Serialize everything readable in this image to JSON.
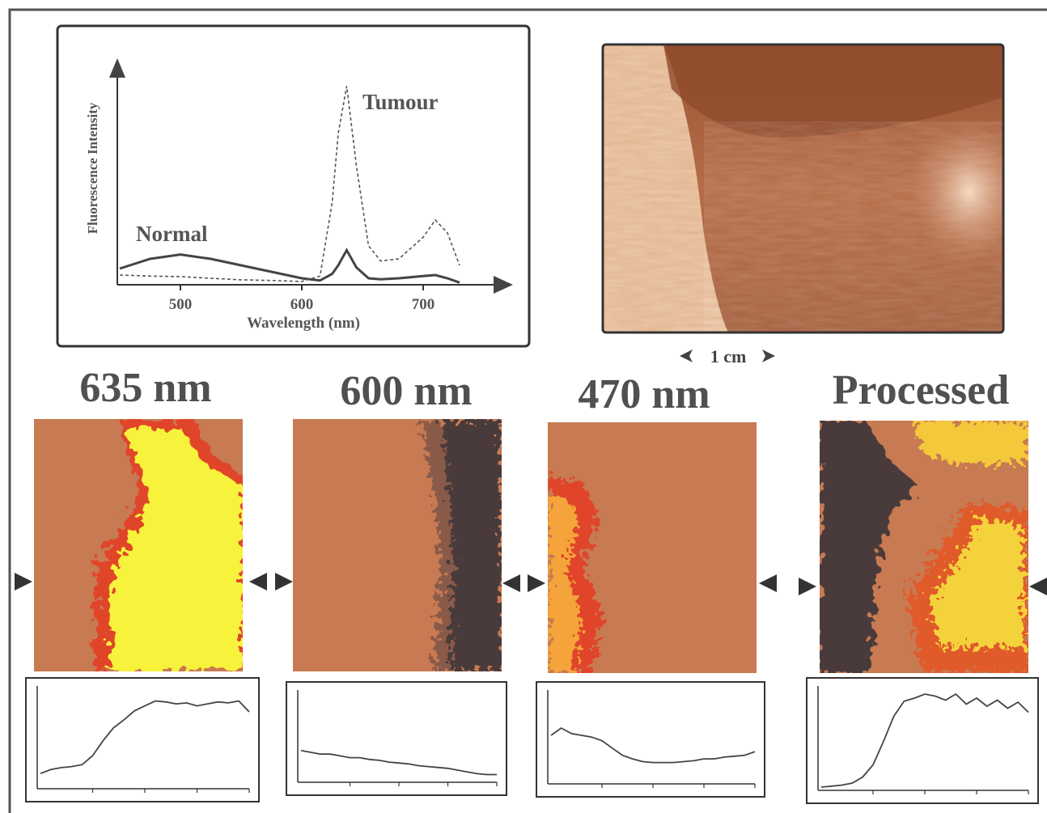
{
  "chart_data": [
    {
      "type": "line",
      "x_label": "Wavelength (nm)",
      "y_label": "Fluorescence Intensity",
      "x": [
        450,
        475,
        500,
        525,
        550,
        575,
        600,
        615,
        625,
        630,
        637,
        645,
        655,
        665,
        680,
        700,
        710,
        720,
        730
      ],
      "series": [
        {
          "name": "Normal",
          "color": "#444444",
          "line_style": "solid",
          "values": [
            7.5,
            12,
            14,
            12,
            9,
            6,
            3,
            2,
            5,
            9,
            16,
            8,
            3,
            2.5,
            3,
            4,
            4.5,
            3,
            1
          ]
        },
        {
          "name": "Tumour",
          "color": "#555555",
          "line_style": "dashed",
          "values": [
            4.5,
            4,
            3.8,
            3,
            2.3,
            2,
            1.5,
            4,
            38,
            70,
            92,
            55,
            18,
            11,
            12,
            22,
            30,
            24,
            9
          ]
        }
      ],
      "xlim": [
        448,
        758
      ],
      "xticks": [
        500,
        600,
        700
      ],
      "ylim": [
        0,
        100
      ]
    },
    {
      "type": "line",
      "title": "635 nm",
      "color": "#444444",
      "ylim": [
        0,
        100
      ],
      "values": [
        12,
        16,
        18,
        19,
        21,
        30,
        45,
        58,
        66,
        75,
        80,
        85,
        84,
        82,
        83,
        80,
        82,
        84,
        83,
        85,
        74
      ]
    },
    {
      "type": "line",
      "title": "600 nm",
      "color": "#444444",
      "ylim": [
        0,
        100
      ],
      "values": [
        32,
        30,
        28,
        28,
        26,
        24,
        24,
        22,
        21,
        19,
        18,
        17,
        15,
        14,
        13,
        12,
        10,
        8,
        6,
        5,
        5
      ]
    },
    {
      "type": "line",
      "title": "470 nm",
      "color": "#444444",
      "ylim": [
        0,
        100
      ],
      "values": [
        50,
        58,
        52,
        50,
        48,
        44,
        36,
        28,
        24,
        21,
        20,
        20,
        20,
        21,
        22,
        24,
        24,
        26,
        27,
        28,
        32
      ]
    },
    {
      "type": "line",
      "title": "Processed",
      "color": "#444444",
      "ylim": [
        0,
        100
      ],
      "values": [
        0,
        1,
        2,
        4,
        10,
        22,
        45,
        70,
        85,
        88,
        92,
        90,
        86,
        92,
        82,
        88,
        80,
        86,
        78,
        84,
        74
      ]
    }
  ],
  "photo": {
    "scale_label": "1 cm"
  }
}
